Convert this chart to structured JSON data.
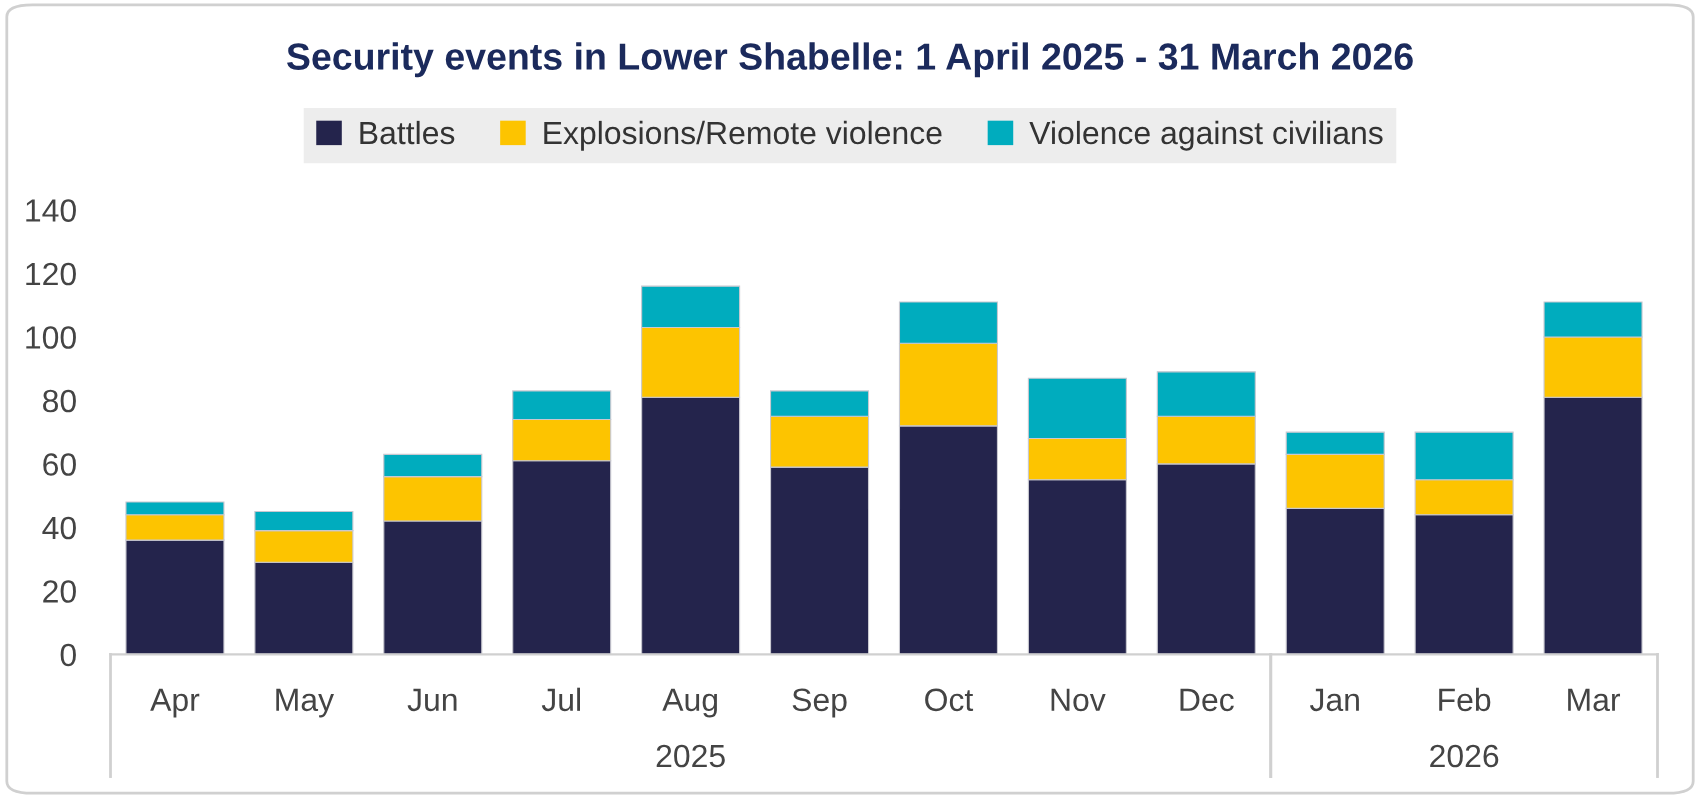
{
  "chart_data": {
    "type": "bar",
    "stacked": true,
    "title": "Security events in Lower Shabelle: 1 April 2025 - 31 March 2026",
    "categories": [
      "Apr",
      "May",
      "Jun",
      "Jul",
      "Aug",
      "Sep",
      "Oct",
      "Nov",
      "Dec",
      "Jan",
      "Feb",
      "Mar"
    ],
    "series": [
      {
        "name": "Battles",
        "color": "#24244c",
        "values": [
          36,
          29,
          42,
          61,
          81,
          59,
          72,
          55,
          60,
          46,
          44,
          81
        ]
      },
      {
        "name": "Explosions/Remote violence",
        "color": "#fdc400",
        "values": [
          8,
          10,
          14,
          13,
          22,
          16,
          26,
          13,
          15,
          17,
          11,
          19
        ]
      },
      {
        "name": "Violence against civilians",
        "color": "#00acbe",
        "values": [
          4,
          6,
          7,
          9,
          13,
          8,
          13,
          19,
          14,
          7,
          15,
          11
        ]
      }
    ],
    "annotations": [
      "2025",
      "2026"
    ],
    "ylim": [
      0,
      140
    ],
    "yticks": [
      0,
      20,
      40,
      60,
      80,
      100,
      120,
      140
    ],
    "legend": "top",
    "grid": false
  }
}
